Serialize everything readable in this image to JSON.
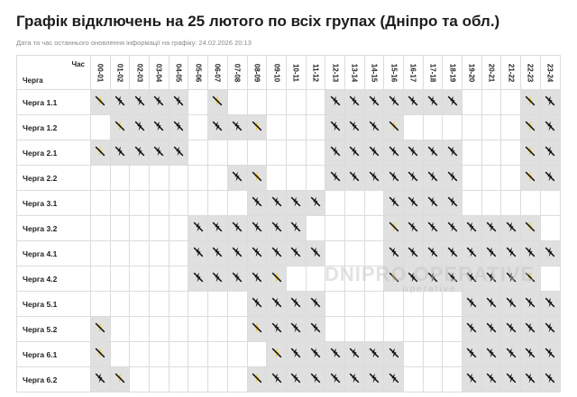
{
  "title": "Графік відключень на 25 лютого по всіх групах (Дніпро та обл.)",
  "updated": "Дата та час останнього оновлення інформації на графіку: 24.02.2026 20:13",
  "header": {
    "hour_label": "Час",
    "queue_label": "Черга"
  },
  "watermark": {
    "line1": "DNIPRO OPERATIVE",
    "line2": "operative"
  },
  "colors": {
    "off_cell": "#e0e0e0",
    "on_cell": "#ffffff",
    "icon": "#111111",
    "partial_bolt": "#f2c200"
  },
  "icons": {
    "off": "power-off-icon",
    "partial": "power-partial-icon"
  },
  "hours": [
    "00-01",
    "01-02",
    "02-03",
    "03-04",
    "04-05",
    "05-06",
    "06-07",
    "07-08",
    "08-09",
    "09-10",
    "10-11",
    "11-12",
    "12-13",
    "13-14",
    "14-15",
    "15-16",
    "16-17",
    "17-18",
    "18-19",
    "19-20",
    "20-21",
    "21-22",
    "22-23",
    "23-24"
  ],
  "rows": [
    {
      "label": "Черга 1.1",
      "cells": [
        "p",
        "x",
        "x",
        "x",
        "x",
        "-",
        "p",
        "-",
        "-",
        "-",
        "-",
        "-",
        "x",
        "x",
        "x",
        "x",
        "x",
        "x",
        "x",
        "-",
        "-",
        "-",
        "p",
        "x"
      ]
    },
    {
      "label": "Черга 1.2",
      "cells": [
        "-",
        "p",
        "x",
        "x",
        "x",
        "-",
        "x",
        "x",
        "p",
        "-",
        "-",
        "-",
        "x",
        "x",
        "x",
        "p",
        "-",
        "-",
        "-",
        "-",
        "-",
        "-",
        "p",
        "x"
      ]
    },
    {
      "label": "Черга 2.1",
      "cells": [
        "p",
        "x",
        "x",
        "x",
        "x",
        "-",
        "-",
        "-",
        "-",
        "-",
        "-",
        "-",
        "x",
        "x",
        "x",
        "x",
        "x",
        "x",
        "x",
        "-",
        "-",
        "-",
        "p",
        "x"
      ]
    },
    {
      "label": "Черга 2.2",
      "cells": [
        "-",
        "-",
        "-",
        "-",
        "-",
        "-",
        "-",
        "x",
        "p",
        "-",
        "-",
        "-",
        "x",
        "x",
        "x",
        "x",
        "x",
        "x",
        "x",
        "-",
        "-",
        "-",
        "p",
        "x"
      ]
    },
    {
      "label": "Черга 3.1",
      "cells": [
        "-",
        "-",
        "-",
        "-",
        "-",
        "-",
        "-",
        "-",
        "x",
        "x",
        "x",
        "x",
        "-",
        "-",
        "-",
        "x",
        "x",
        "x",
        "x",
        "-",
        "-",
        "-",
        "-",
        "-"
      ]
    },
    {
      "label": "Черга 3.2",
      "cells": [
        "-",
        "-",
        "-",
        "-",
        "-",
        "x",
        "x",
        "x",
        "x",
        "x",
        "x",
        "-",
        "-",
        "-",
        "-",
        "p",
        "x",
        "x",
        "x",
        "x",
        "x",
        "x",
        "p",
        "-"
      ]
    },
    {
      "label": "Черга 4.1",
      "cells": [
        "-",
        "-",
        "-",
        "-",
        "-",
        "x",
        "x",
        "x",
        "x",
        "x",
        "x",
        "x",
        "-",
        "-",
        "-",
        "x",
        "x",
        "x",
        "x",
        "x",
        "x",
        "x",
        "x",
        "x"
      ]
    },
    {
      "label": "Черга 4.2",
      "cells": [
        "-",
        "-",
        "-",
        "-",
        "-",
        "x",
        "x",
        "x",
        "x",
        "p",
        "-",
        "-",
        "-",
        "-",
        "-",
        "p",
        "x",
        "x",
        "x",
        "x",
        "x",
        "x",
        "p",
        "-"
      ]
    },
    {
      "label": "Черга 5.1",
      "cells": [
        "-",
        "-",
        "-",
        "-",
        "-",
        "-",
        "-",
        "-",
        "x",
        "x",
        "x",
        "x",
        "-",
        "-",
        "-",
        "-",
        "-",
        "-",
        "-",
        "x",
        "x",
        "x",
        "x",
        "x"
      ]
    },
    {
      "label": "Черга 5.2",
      "cells": [
        "p",
        "-",
        "-",
        "-",
        "-",
        "-",
        "-",
        "-",
        "p",
        "x",
        "x",
        "x",
        "-",
        "-",
        "-",
        "-",
        "-",
        "-",
        "-",
        "x",
        "x",
        "x",
        "x",
        "x"
      ]
    },
    {
      "label": "Черга 6.1",
      "cells": [
        "p",
        "-",
        "-",
        "-",
        "-",
        "-",
        "-",
        "-",
        "-",
        "p",
        "x",
        "x",
        "x",
        "x",
        "x",
        "x",
        "-",
        "-",
        "-",
        "x",
        "x",
        "x",
        "x",
        "x"
      ]
    },
    {
      "label": "Черга 6.2",
      "cells": [
        "x",
        "p",
        "-",
        "-",
        "-",
        "-",
        "-",
        "-",
        "p",
        "x",
        "x",
        "x",
        "x",
        "x",
        "x",
        "x",
        "-",
        "-",
        "-",
        "x",
        "x",
        "x",
        "x",
        "x"
      ]
    }
  ]
}
